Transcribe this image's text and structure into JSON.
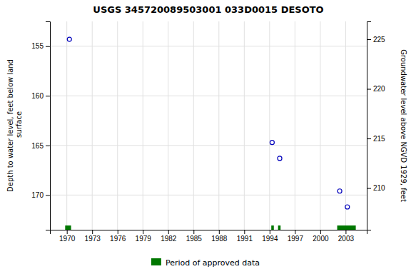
{
  "chart_data": {
    "type": "scatter",
    "title": "USGS 345720089503001 033D0015  DESOTO",
    "ylabel": "Depth to water level, feet below land\n surface",
    "y2label": "Groundwater level above NGVD 1929, feet",
    "x": [
      1970.3,
      1994.3,
      1995.2,
      2002.3,
      2003.2
    ],
    "values": [
      154.3,
      164.7,
      166.3,
      169.6,
      171.2
    ],
    "color": "#0000bb",
    "marker": "open-circle",
    "bands": [
      {
        "name": "Period of approved data",
        "color": "#007700",
        "start": [
          1969.8,
          1994.2,
          1995.0,
          2002.0
        ],
        "end": [
          1970.5,
          1994.5,
          1995.3,
          2004.2
        ]
      }
    ],
    "xlim": [
      1968.0,
      2005.5
    ],
    "xticks": [
      1970,
      1973,
      1976,
      1979,
      1982,
      1985,
      1988,
      1991,
      1994,
      1997,
      2000,
      2003
    ],
    "ylim": [
      173.5,
      152.5
    ],
    "yticks": [
      155,
      160,
      165,
      170
    ],
    "y2lim": [
      205.8,
      226.8
    ],
    "y2ticks": [
      225,
      220,
      215,
      210
    ],
    "grid": true,
    "legend": "bottom"
  }
}
